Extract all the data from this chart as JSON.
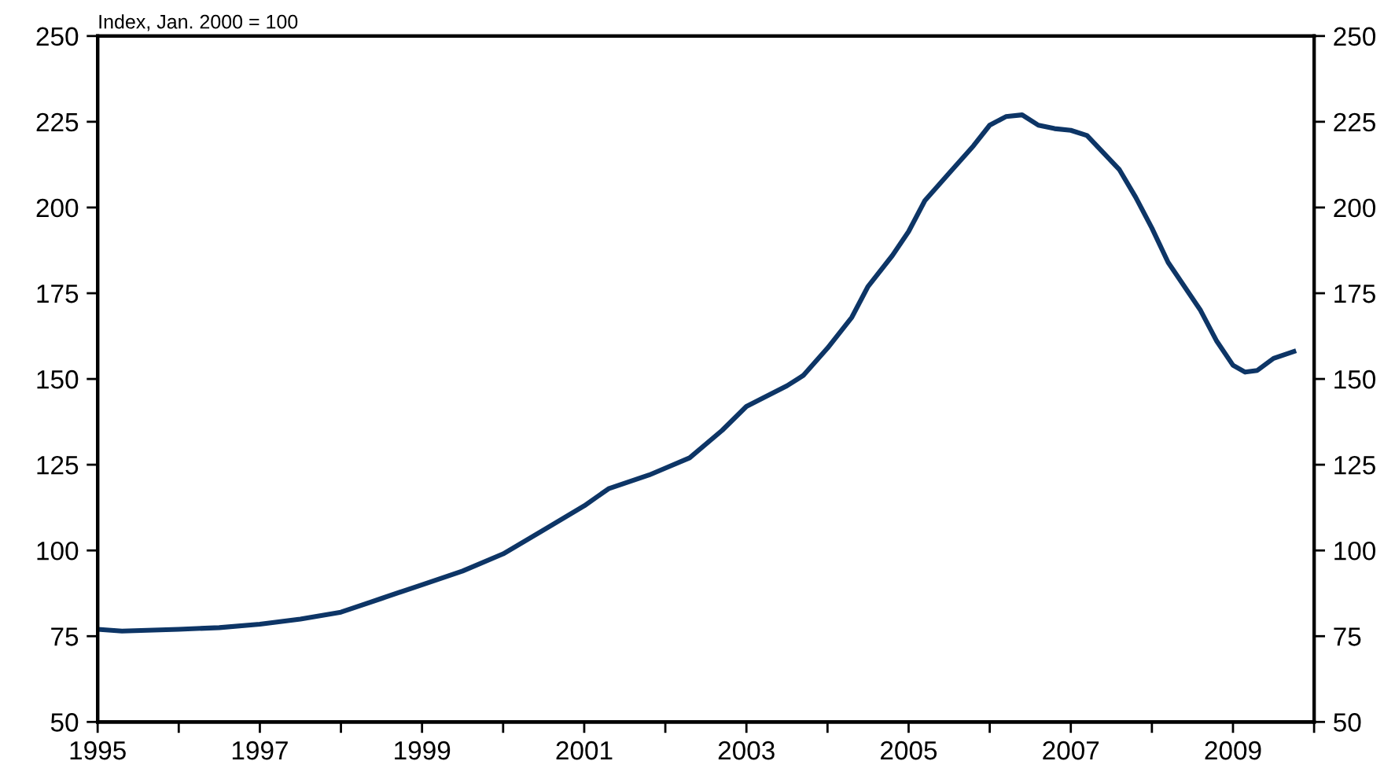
{
  "chart_data": {
    "type": "line",
    "ylabel": "Index, Jan. 2000 = 100",
    "x": [
      1995.0,
      1995.3,
      1996.0,
      1996.5,
      1997.0,
      1997.5,
      1998.0,
      1998.5,
      1999.0,
      1999.5,
      2000.0,
      2000.5,
      2001.0,
      2001.3,
      2001.8,
      2002.0,
      2002.3,
      2002.7,
      2003.0,
      2003.5,
      2003.7,
      2004.0,
      2004.3,
      2004.5,
      2004.8,
      2005.0,
      2005.2,
      2005.5,
      2005.8,
      2006.0,
      2006.2,
      2006.4,
      2006.6,
      2006.8,
      2007.0,
      2007.2,
      2007.4,
      2007.6,
      2007.8,
      2008.0,
      2008.2,
      2008.4,
      2008.6,
      2008.8,
      2009.0,
      2009.15,
      2009.3,
      2009.5,
      2009.75
    ],
    "series": [
      {
        "color": "#0d3566",
        "values": [
          77,
          76.5,
          77,
          77.5,
          78.5,
          80,
          82,
          86,
          90,
          94,
          99,
          106,
          113,
          118,
          122,
          124,
          127,
          135,
          142,
          148,
          151,
          159,
          168,
          177,
          186,
          193,
          202,
          210,
          218,
          224,
          226.5,
          227,
          224,
          223,
          222.5,
          221,
          216,
          211,
          203,
          194,
          184,
          177,
          170,
          161,
          154,
          152,
          152.5,
          156,
          158
        ]
      }
    ],
    "xlim": [
      1995,
      2010
    ],
    "xticks": [
      1995,
      {
        "value": 1996,
        "label": null
      },
      1997,
      {
        "value": 1998,
        "label": null
      },
      1999,
      {
        "value": 2000,
        "label": null
      },
      2001,
      {
        "value": 2002,
        "label": null
      },
      2003,
      {
        "value": 2004,
        "label": null
      },
      2005,
      {
        "value": 2006,
        "label": null
      },
      2007,
      {
        "value": 2008,
        "label": null
      },
      2009,
      {
        "value": 2010,
        "label": null
      }
    ],
    "ylim": [
      50,
      250
    ],
    "yticks": [
      50,
      75,
      100,
      125,
      150,
      175,
      200,
      225,
      250
    ],
    "y2lim": [
      50,
      250
    ],
    "y2ticks": [
      50,
      75,
      100,
      125,
      150,
      175,
      200,
      225,
      250
    ],
    "grid": false,
    "legend": false,
    "marker": "none",
    "line_style": "solid"
  }
}
